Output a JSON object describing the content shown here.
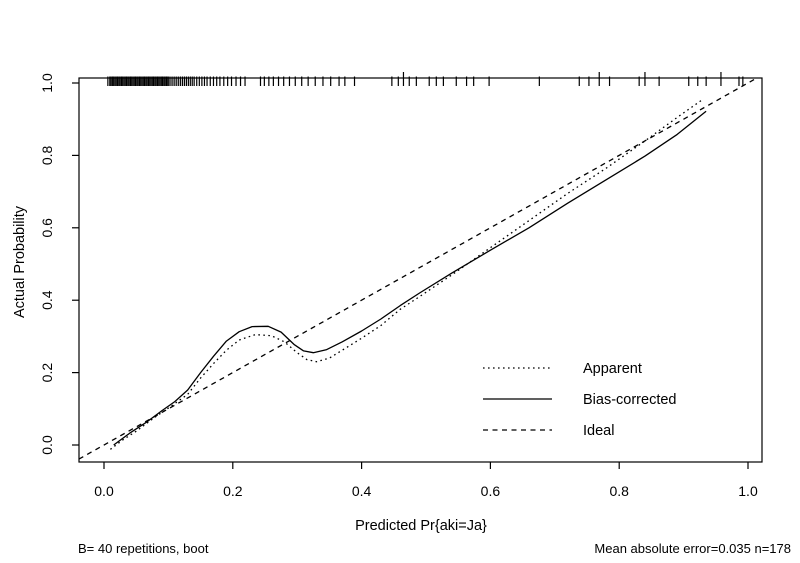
{
  "figure": {
    "background": "#ffffff",
    "line_color": "#000000"
  },
  "annotations": {
    "bottom_left": "B= 40 repetitions, boot",
    "bottom_right": "Mean absolute error=0.035 n=178"
  },
  "chart_data": {
    "type": "line",
    "title": "",
    "xlabel": "Predicted Pr{aki=Ja}",
    "ylabel": "Actual Probability",
    "xlim": [
      -0.04,
      1.02
    ],
    "ylim": [
      -0.05,
      1.02
    ],
    "x_ticks": [
      0.0,
      0.2,
      0.4,
      0.6,
      0.8,
      1.0
    ],
    "y_ticks": [
      0.0,
      0.2,
      0.4,
      0.6,
      0.8,
      1.0
    ],
    "grid": false,
    "legend": {
      "position": "inside-right-lower",
      "entries": [
        "Apparent",
        "Bias-corrected",
        "Ideal"
      ]
    },
    "series": [
      {
        "name": "Apparent",
        "style": "dotted",
        "points": [
          [
            0.01,
            -0.012
          ],
          [
            0.03,
            0.015
          ],
          [
            0.05,
            0.038
          ],
          [
            0.08,
            0.078
          ],
          [
            0.105,
            0.108
          ],
          [
            0.13,
            0.14
          ],
          [
            0.15,
            0.185
          ],
          [
            0.17,
            0.225
          ],
          [
            0.19,
            0.262
          ],
          [
            0.21,
            0.29
          ],
          [
            0.235,
            0.305
          ],
          [
            0.26,
            0.302
          ],
          [
            0.28,
            0.285
          ],
          [
            0.3,
            0.255
          ],
          [
            0.315,
            0.236
          ],
          [
            0.33,
            0.23
          ],
          [
            0.35,
            0.24
          ],
          [
            0.37,
            0.262
          ],
          [
            0.4,
            0.295
          ],
          [
            0.43,
            0.33
          ],
          [
            0.46,
            0.375
          ],
          [
            0.49,
            0.41
          ],
          [
            0.54,
            0.47
          ],
          [
            0.6,
            0.545
          ],
          [
            0.66,
            0.62
          ],
          [
            0.72,
            0.695
          ],
          [
            0.78,
            0.765
          ],
          [
            0.84,
            0.84
          ],
          [
            0.89,
            0.905
          ],
          [
            0.93,
            0.955
          ]
        ]
      },
      {
        "name": "Bias-corrected",
        "style": "solid",
        "points": [
          [
            0.015,
            0.0
          ],
          [
            0.04,
            0.033
          ],
          [
            0.065,
            0.062
          ],
          [
            0.09,
            0.095
          ],
          [
            0.11,
            0.12
          ],
          [
            0.13,
            0.152
          ],
          [
            0.15,
            0.2
          ],
          [
            0.17,
            0.245
          ],
          [
            0.19,
            0.287
          ],
          [
            0.21,
            0.313
          ],
          [
            0.23,
            0.327
          ],
          [
            0.255,
            0.328
          ],
          [
            0.275,
            0.312
          ],
          [
            0.295,
            0.278
          ],
          [
            0.31,
            0.26
          ],
          [
            0.325,
            0.255
          ],
          [
            0.345,
            0.263
          ],
          [
            0.37,
            0.285
          ],
          [
            0.4,
            0.315
          ],
          [
            0.43,
            0.348
          ],
          [
            0.46,
            0.385
          ],
          [
            0.49,
            0.42
          ],
          [
            0.54,
            0.475
          ],
          [
            0.6,
            0.538
          ],
          [
            0.66,
            0.6
          ],
          [
            0.72,
            0.668
          ],
          [
            0.78,
            0.733
          ],
          [
            0.84,
            0.798
          ],
          [
            0.89,
            0.858
          ],
          [
            0.935,
            0.922
          ]
        ]
      },
      {
        "name": "Ideal",
        "style": "dashed",
        "points": [
          [
            -0.039,
            -0.039
          ],
          [
            1.014,
            1.014
          ]
        ]
      }
    ],
    "rug_x": [
      0.006,
      0.009,
      0.011,
      0.013,
      0.015,
      0.017,
      0.019,
      0.021,
      0.023,
      0.025,
      0.027,
      0.029,
      0.031,
      0.033,
      0.035,
      0.037,
      0.039,
      0.041,
      0.043,
      0.045,
      0.047,
      0.049,
      0.051,
      0.053,
      0.055,
      0.057,
      0.059,
      0.061,
      0.063,
      0.065,
      0.067,
      0.069,
      0.071,
      0.073,
      0.075,
      0.077,
      0.079,
      0.081,
      0.083,
      0.085,
      0.087,
      0.089,
      0.091,
      0.093,
      0.095,
      0.097,
      0.099,
      0.101,
      0.104,
      0.107,
      0.11,
      0.113,
      0.116,
      0.119,
      0.122,
      0.125,
      0.128,
      0.131,
      0.134,
      0.137,
      0.14,
      0.144,
      0.148,
      0.152,
      0.156,
      0.16,
      0.165,
      0.17,
      0.175,
      0.18,
      0.186,
      0.192,
      0.198,
      0.205,
      0.212,
      0.219,
      0.243,
      0.249,
      0.256,
      0.263,
      0.271,
      0.279,
      0.288,
      0.297,
      0.307,
      0.317,
      0.328,
      0.34,
      0.352,
      0.365,
      0.374,
      0.389,
      0.447,
      0.457,
      0.465,
      0.474,
      0.485,
      0.505,
      0.516,
      0.527,
      0.547,
      0.563,
      0.574,
      0.598,
      0.676,
      0.738,
      0.753,
      0.769,
      0.785,
      0.831,
      0.84,
      0.862,
      0.908,
      0.922,
      0.935,
      0.958,
      0.986,
      0.992
    ],
    "rug_tall_x": [
      0.465,
      0.769,
      0.84,
      0.958
    ]
  }
}
